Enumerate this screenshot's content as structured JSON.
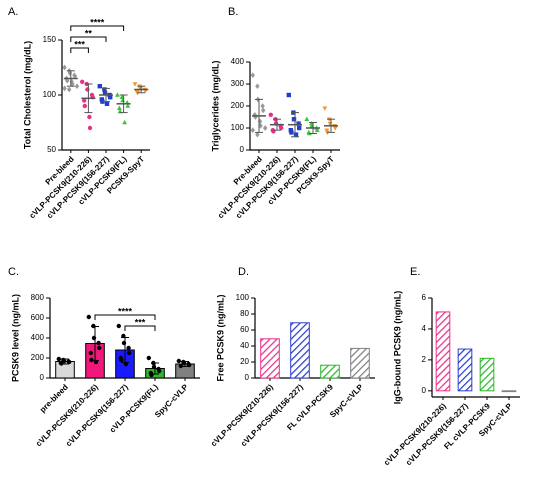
{
  "chart_data": [
    {
      "type": "dot",
      "panel": "A.",
      "y_label": "Total Cholesterol (mg/dL)",
      "categories": [
        "Pre-bleed",
        "cVLP-PCSK9(210-226)",
        "cVLP-PCSK9(156-227)",
        "cVLP-PCSK9(FL)",
        "PCSK9-SpyT"
      ],
      "colors": [
        "#999999",
        "#e8308a",
        "#1f3fd0",
        "#3cc43c",
        "#f5962b"
      ],
      "markers": [
        "diamond",
        "circle",
        "square",
        "triangle",
        "triangle-down"
      ],
      "values": [
        115,
        97,
        100,
        92,
        105
      ],
      "errors": [
        7,
        13,
        6,
        8,
        3
      ],
      "points": [
        [
          125,
          122,
          120,
          118,
          117,
          115,
          113,
          112,
          110,
          108,
          106,
          105
        ],
        [
          112,
          110,
          105,
          100,
          98,
          95,
          90,
          80,
          70
        ],
        [
          108,
          105,
          102,
          100,
          98,
          96,
          94,
          92
        ],
        [
          100,
          98,
          95,
          93,
          90,
          88,
          85,
          75
        ],
        [
          110,
          108,
          106,
          105,
          104,
          103,
          102
        ]
      ],
      "ylim": [
        50,
        150
      ],
      "yticks": [
        50,
        100,
        150
      ],
      "annotations": [
        {
          "text": "***",
          "between": [
            "Pre-bleed",
            "cVLP-PCSK9(210-226)"
          ]
        },
        {
          "text": "**",
          "between": [
            "Pre-bleed",
            "cVLP-PCSK9(156-227)"
          ]
        },
        {
          "text": "****",
          "between": [
            "Pre-bleed",
            "cVLP-PCSK9(FL)"
          ]
        }
      ]
    },
    {
      "type": "dot",
      "panel": "B.",
      "y_label": "Triglycerides (mg/dL)",
      "categories": [
        "Pre-bleed",
        "cVLP-PCSK9(210-226)",
        "cVLP-PCSK9(156-227)",
        "cVLP-PCSK9(FL)",
        "PCSK9-SpyT"
      ],
      "colors": [
        "#999999",
        "#e8308a",
        "#1f3fd0",
        "#3cc43c",
        "#f5962b"
      ],
      "markers": [
        "diamond",
        "circle",
        "square",
        "triangle",
        "triangle-down"
      ],
      "values": [
        155,
        115,
        115,
        100,
        110
      ],
      "errors": [
        75,
        25,
        55,
        25,
        30
      ],
      "points": [
        [
          340,
          290,
          230,
          200,
          180,
          160,
          150,
          130,
          110,
          100,
          90,
          70
        ],
        [
          160,
          140,
          120,
          110,
          100,
          90,
          85
        ],
        [
          250,
          170,
          140,
          120,
          100,
          90,
          80,
          70
        ],
        [
          140,
          120,
          110,
          100,
          90,
          80,
          75
        ],
        [
          190,
          140,
          120,
          110,
          100,
          90,
          80
        ]
      ],
      "ylim": [
        0,
        400
      ],
      "yticks": [
        0,
        100,
        200,
        300,
        400
      ]
    },
    {
      "type": "bar",
      "panel": "C.",
      "y_label": "PCSK9 level (ng/mL)",
      "categories": [
        "pre-bleed",
        "cVLP-PCSK9(210-226)",
        "cVLP-PCSK9(156-227)",
        "cVLP-PCSK9(FL)",
        "SpyC-cVLP"
      ],
      "colors": [
        "#d9d9d9",
        "#f0187a",
        "#1a1aff",
        "#2db82d",
        "#808080"
      ],
      "values": [
        165,
        345,
        280,
        95,
        140
      ],
      "errors": [
        25,
        170,
        125,
        55,
        25
      ],
      "points": [
        [
          190,
          180,
          170,
          165,
          160,
          150,
          145
        ],
        [
          610,
          520,
          400,
          350,
          300,
          250,
          180,
          160
        ],
        [
          520,
          420,
          350,
          300,
          250,
          200,
          180,
          140
        ],
        [
          200,
          150,
          110,
          90,
          70,
          50,
          30
        ],
        [
          170,
          160,
          150,
          140,
          130,
          120
        ]
      ],
      "ylim": [
        0,
        800
      ],
      "yticks": [
        0,
        200,
        400,
        600,
        800
      ],
      "annotations": [
        {
          "text": "***",
          "between": [
            "cVLP-PCSK9(156-227)",
            "cVLP-PCSK9(FL)"
          ]
        },
        {
          "text": "****",
          "between": [
            "cVLP-PCSK9(210-226)",
            "cVLP-PCSK9(FL)"
          ]
        }
      ]
    },
    {
      "type": "bar",
      "panel": "D.",
      "y_label": "Free PCSK9 (ng/mL)",
      "hatch": true,
      "categories": [
        "cVLP-PCSK9(210-226)",
        "cVLP-PCSK9(156-227)",
        "FL cVLP-PCSK9",
        "SpyC-cVLP"
      ],
      "colors": [
        "#e8308a",
        "#2a3fd0",
        "#2db82d",
        "#808080"
      ],
      "values": [
        49,
        69,
        16,
        37
      ],
      "ylim": [
        0,
        100
      ],
      "yticks": [
        0,
        20,
        40,
        60,
        80,
        100
      ]
    },
    {
      "type": "bar",
      "panel": "E.",
      "y_label": "IgG-bound PCSK9 (ng/mL)",
      "hatch": true,
      "categories": [
        "cVLP-PCSK9(210-226)",
        "cVLP-PCSK9(156-227)",
        "FL cVLP-PCSK9",
        "SpyC-cVLP"
      ],
      "colors": [
        "#e8308a",
        "#2a3fd0",
        "#2db82d",
        "#808080"
      ],
      "values": [
        5.1,
        2.7,
        2.1,
        -0.05
      ],
      "ylim": [
        -0.4,
        6
      ],
      "yticks": [
        0,
        2,
        4,
        6
      ]
    }
  ]
}
